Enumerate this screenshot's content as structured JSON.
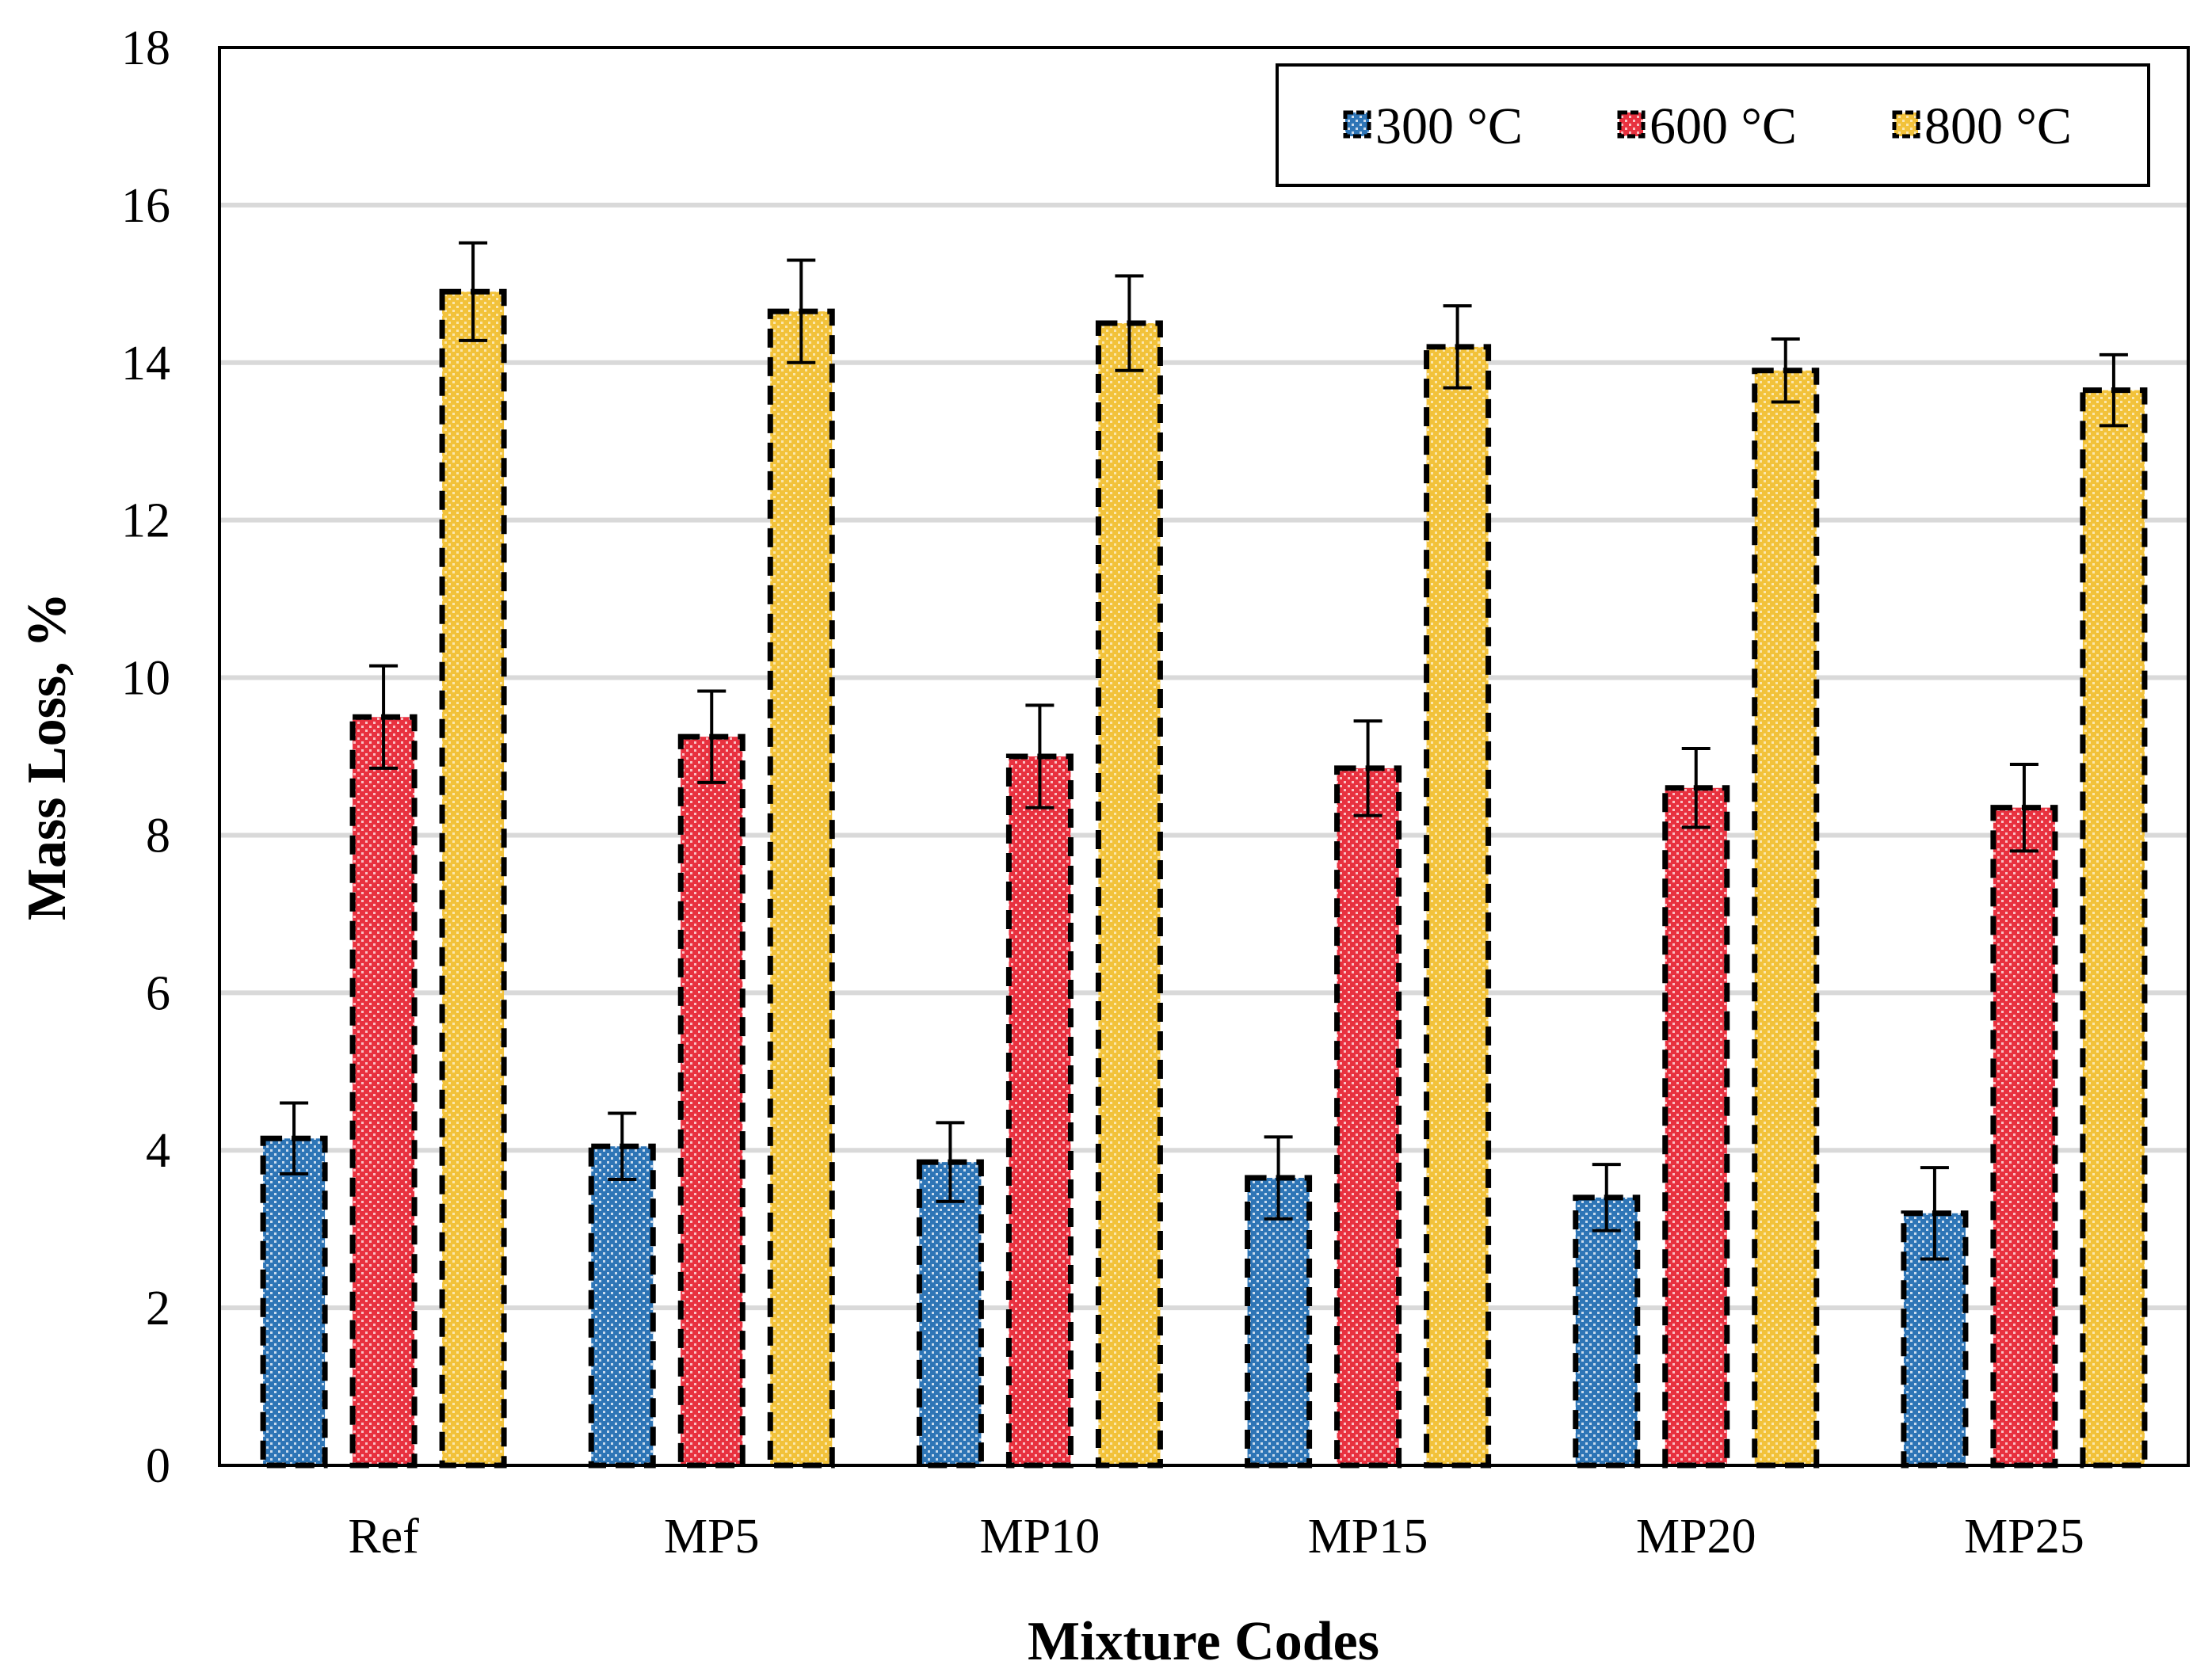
{
  "chart_data": {
    "type": "bar",
    "title": "",
    "xlabel": "Mixture Codes",
    "ylabel": "Mass Loss, %",
    "ylim": [
      0,
      18
    ],
    "yticks": [
      0,
      2,
      4,
      6,
      8,
      10,
      12,
      14,
      16,
      18
    ],
    "grid": "horizontal",
    "legend_position": "top-right",
    "categories": [
      "Ref",
      "MP5",
      "MP10",
      "MP15",
      "MP20",
      "MP25"
    ],
    "series": [
      {
        "name": "300 °C",
        "color": "#2E75B6",
        "values": [
          4.15,
          4.05,
          3.85,
          3.65,
          3.4,
          3.2
        ],
        "errors": [
          0.45,
          0.42,
          0.5,
          0.52,
          0.42,
          0.58
        ]
      },
      {
        "name": "600 °C",
        "color": "#E8313F",
        "values": [
          9.5,
          9.25,
          9.0,
          8.85,
          8.6,
          8.35
        ],
        "errors": [
          0.65,
          0.58,
          0.65,
          0.6,
          0.5,
          0.55
        ]
      },
      {
        "name": "800 °C",
        "color": "#F2C23A",
        "values": [
          14.9,
          14.65,
          14.5,
          14.2,
          13.9,
          13.65
        ],
        "errors": [
          0.62,
          0.65,
          0.6,
          0.52,
          0.4,
          0.45
        ]
      }
    ]
  }
}
